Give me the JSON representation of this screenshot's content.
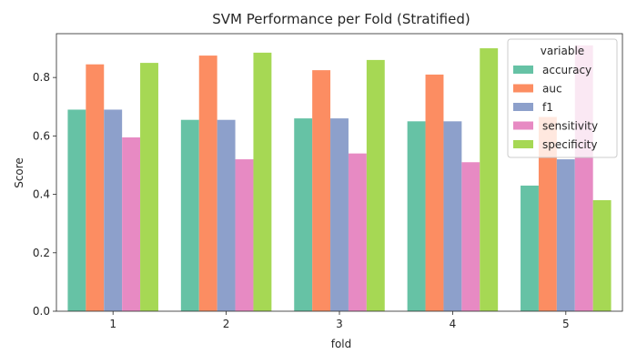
{
  "chart_data": {
    "type": "bar",
    "title": "SVM Performance per Fold (Stratified)",
    "xlabel": "fold",
    "ylabel": "Score",
    "categories": [
      "1",
      "2",
      "3",
      "4",
      "5"
    ],
    "ylim": [
      0,
      0.95
    ],
    "yticks": [
      "0.0",
      "0.2",
      "0.4",
      "0.6",
      "0.8"
    ],
    "grid": false,
    "legend": {
      "title": "variable",
      "placement": "top-right"
    },
    "series": [
      {
        "name": "accuracy",
        "color": "#66c2a5",
        "values": [
          0.69,
          0.655,
          0.66,
          0.65,
          0.43
        ]
      },
      {
        "name": "auc",
        "color": "#fc8d62",
        "values": [
          0.845,
          0.875,
          0.825,
          0.81,
          0.665
        ]
      },
      {
        "name": "f1",
        "color": "#8da0cb",
        "values": [
          0.69,
          0.655,
          0.66,
          0.65,
          0.52
        ]
      },
      {
        "name": "sensitivity",
        "color": "#e78ac3",
        "values": [
          0.595,
          0.52,
          0.54,
          0.51,
          0.91
        ]
      },
      {
        "name": "specificity",
        "color": "#a6d854",
        "values": [
          0.85,
          0.885,
          0.86,
          0.9,
          0.38
        ]
      }
    ]
  }
}
